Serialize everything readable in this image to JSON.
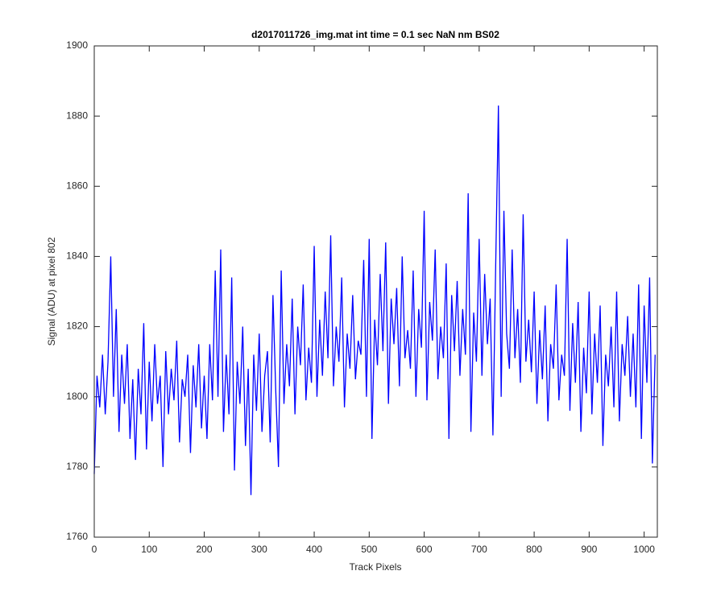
{
  "chart_data": {
    "type": "line",
    "title": "d2017011726_img.mat int time = 0.1 sec  NaN nm BS02",
    "x_label": "Track Pixels",
    "y_label": "Signal (ADU) at pixel 802",
    "color": "#0000ff",
    "grid": false,
    "xlim": [
      0,
      1024
    ],
    "ylim": [
      1760,
      1900
    ],
    "xticks": [
      0,
      100,
      200,
      300,
      400,
      500,
      600,
      700,
      800,
      900,
      1000
    ],
    "yticks": [
      1760,
      1780,
      1800,
      1820,
      1840,
      1860,
      1880,
      1900
    ],
    "x": [
      0,
      5,
      10,
      15,
      20,
      25,
      30,
      35,
      40,
      45,
      50,
      55,
      60,
      65,
      70,
      75,
      80,
      85,
      90,
      95,
      100,
      105,
      110,
      115,
      120,
      125,
      130,
      135,
      140,
      145,
      150,
      155,
      160,
      165,
      170,
      175,
      180,
      185,
      190,
      195,
      200,
      205,
      210,
      215,
      220,
      225,
      230,
      235,
      240,
      245,
      250,
      255,
      260,
      265,
      270,
      275,
      280,
      285,
      290,
      295,
      300,
      305,
      310,
      315,
      320,
      325,
      330,
      335,
      340,
      345,
      350,
      355,
      360,
      365,
      370,
      375,
      380,
      385,
      390,
      395,
      400,
      405,
      410,
      415,
      420,
      425,
      430,
      435,
      440,
      445,
      450,
      455,
      460,
      465,
      470,
      475,
      480,
      485,
      490,
      495,
      500,
      505,
      510,
      515,
      520,
      525,
      530,
      535,
      540,
      545,
      550,
      555,
      560,
      565,
      570,
      575,
      580,
      585,
      590,
      595,
      600,
      605,
      610,
      615,
      620,
      625,
      630,
      635,
      640,
      645,
      650,
      655,
      660,
      665,
      670,
      675,
      680,
      685,
      690,
      695,
      700,
      705,
      710,
      715,
      720,
      725,
      730,
      735,
      740,
      745,
      750,
      755,
      760,
      765,
      770,
      775,
      780,
      785,
      790,
      795,
      800,
      805,
      810,
      815,
      820,
      825,
      830,
      835,
      840,
      845,
      850,
      855,
      860,
      865,
      870,
      875,
      880,
      885,
      890,
      895,
      900,
      905,
      910,
      915,
      920,
      925,
      930,
      935,
      940,
      945,
      950,
      955,
      960,
      965,
      970,
      975,
      980,
      985,
      990,
      995,
      1000,
      1005,
      1010,
      1015,
      1020
    ],
    "values": [
      1778,
      1806,
      1797,
      1812,
      1795,
      1810,
      1840,
      1800,
      1825,
      1790,
      1812,
      1798,
      1815,
      1788,
      1805,
      1782,
      1808,
      1795,
      1821,
      1785,
      1810,
      1793,
      1815,
      1798,
      1806,
      1780,
      1813,
      1795,
      1808,
      1799,
      1816,
      1787,
      1805,
      1800,
      1812,
      1784,
      1809,
      1797,
      1815,
      1791,
      1806,
      1788,
      1815,
      1799,
      1836,
      1800,
      1842,
      1790,
      1812,
      1795,
      1834,
      1779,
      1810,
      1798,
      1820,
      1786,
      1808,
      1772,
      1812,
      1796,
      1818,
      1790,
      1806,
      1813,
      1787,
      1829,
      1802,
      1780,
      1836,
      1798,
      1815,
      1803,
      1828,
      1795,
      1820,
      1809,
      1832,
      1799,
      1814,
      1804,
      1843,
      1800,
      1822,
      1806,
      1830,
      1811,
      1846,
      1803,
      1820,
      1810,
      1834,
      1797,
      1818,
      1808,
      1829,
      1805,
      1816,
      1812,
      1839,
      1800,
      1845,
      1788,
      1822,
      1809,
      1835,
      1813,
      1844,
      1798,
      1828,
      1815,
      1831,
      1803,
      1840,
      1811,
      1819,
      1808,
      1836,
      1800,
      1825,
      1814,
      1853,
      1799,
      1827,
      1816,
      1842,
      1805,
      1820,
      1811,
      1838,
      1788,
      1829,
      1813,
      1833,
      1806,
      1825,
      1812,
      1858,
      1790,
      1824,
      1810,
      1845,
      1806,
      1835,
      1815,
      1828,
      1789,
      1837,
      1883,
      1800,
      1853,
      1818,
      1808,
      1842,
      1811,
      1825,
      1804,
      1852,
      1810,
      1822,
      1807,
      1830,
      1798,
      1819,
      1805,
      1826,
      1793,
      1815,
      1808,
      1832,
      1799,
      1812,
      1806,
      1845,
      1796,
      1821,
      1804,
      1827,
      1790,
      1814,
      1801,
      1830,
      1795,
      1818,
      1804,
      1826,
      1786,
      1812,
      1803,
      1820,
      1797,
      1830,
      1793,
      1815,
      1806,
      1823,
      1800,
      1818,
      1797,
      1832,
      1788,
      1826,
      1804,
      1834,
      1781,
      1812
    ]
  }
}
